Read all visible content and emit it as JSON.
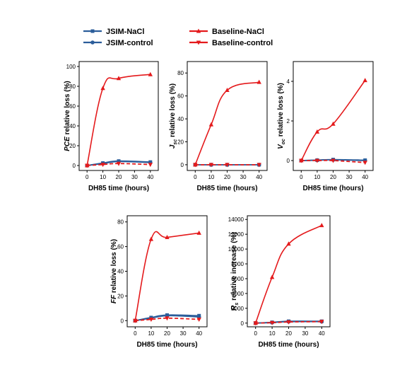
{
  "legend": {
    "items": [
      {
        "label": "JSIM-NaCl",
        "color": "#2b5d9a",
        "marker": "square",
        "dash": false
      },
      {
        "label": "JSIM-control",
        "color": "#2b5d9a",
        "marker": "circle",
        "dash": false
      },
      {
        "label": "Baseline-NaCl",
        "color": "#e41a1c",
        "marker": "triangle-up",
        "dash": false
      },
      {
        "label": "Baseline-control",
        "color": "#e41a1c",
        "marker": "triangle-down",
        "dash": false
      }
    ],
    "placement": "top-center"
  },
  "colors": {
    "jsim": "#2b5d9a",
    "baseline": "#e41a1c"
  },
  "chart_data": [
    {
      "type": "line",
      "title": "",
      "xlabel": "DH85 time (hours)",
      "ylabel": {
        "main": "PCE",
        "sub": "",
        "rest": " relative loss (%)",
        "main_italic": true
      },
      "x": [
        0,
        10,
        20,
        40
      ],
      "xlim": [
        -5,
        45
      ],
      "ylim": [
        -5,
        105
      ],
      "xticks": [
        "0",
        "10",
        "20",
        "30",
        "40"
      ],
      "yticks": [
        "0",
        "20",
        "40",
        "60",
        "80",
        "100"
      ],
      "series": [
        {
          "name": "JSIM-NaCl",
          "values": [
            0,
            2.5,
            4.5,
            3.5
          ]
        },
        {
          "name": "JSIM-control",
          "values": [
            0,
            2,
            4,
            3
          ]
        },
        {
          "name": "Baseline-NaCl",
          "values": [
            0,
            78,
            88,
            92
          ]
        },
        {
          "name": "Baseline-control",
          "values": [
            0,
            1,
            2,
            1
          ]
        }
      ]
    },
    {
      "type": "line",
      "title": "",
      "xlabel": "DH85 time (hours)",
      "ylabel": {
        "main": "J",
        "sub": "sc",
        "rest": " relative loss (%)",
        "main_italic": true
      },
      "x": [
        0,
        10,
        20,
        40
      ],
      "xlim": [
        -5,
        45
      ],
      "ylim": [
        -5,
        90
      ],
      "xticks": [
        "0",
        "10",
        "20",
        "30",
        "40"
      ],
      "yticks": [
        "0",
        "20",
        "40",
        "60",
        "80"
      ],
      "series": [
        {
          "name": "JSIM-NaCl",
          "values": [
            0,
            0,
            0,
            0
          ]
        },
        {
          "name": "JSIM-control",
          "values": [
            0,
            0,
            0,
            0
          ]
        },
        {
          "name": "Baseline-NaCl",
          "values": [
            0,
            35,
            65,
            72
          ]
        },
        {
          "name": "Baseline-control",
          "values": [
            0,
            0,
            0,
            0
          ]
        }
      ]
    },
    {
      "type": "line",
      "title": "",
      "xlabel": "DH85 time (hours)",
      "ylabel": {
        "main": "V",
        "sub": "oc",
        "rest": " relative loss (%)",
        "main_italic": true
      },
      "x": [
        0,
        10,
        20,
        40
      ],
      "xlim": [
        -5,
        45
      ],
      "ylim": [
        -0.5,
        5.0
      ],
      "xticks": [
        "0",
        "10",
        "20",
        "30",
        "40"
      ],
      "yticks": [
        "0",
        "2",
        "4"
      ],
      "series": [
        {
          "name": "JSIM-NaCl",
          "values": [
            0,
            0.02,
            0.05,
            0.02
          ]
        },
        {
          "name": "JSIM-control",
          "values": [
            0,
            0.02,
            0.04,
            0.0
          ]
        },
        {
          "name": "Baseline-NaCl",
          "values": [
            0,
            1.45,
            1.85,
            4.05
          ]
        },
        {
          "name": "Baseline-control",
          "values": [
            0,
            0,
            0,
            -0.1
          ]
        }
      ]
    },
    {
      "type": "line",
      "title": "",
      "xlabel": "DH85 time (hours)",
      "ylabel": {
        "main": "FF",
        "sub": "",
        "rest": " relative loss (%)",
        "main_italic": true
      },
      "x": [
        0,
        10,
        20,
        40
      ],
      "xlim": [
        -5,
        45
      ],
      "ylim": [
        -5,
        85
      ],
      "xticks": [
        "0",
        "10",
        "20",
        "30",
        "40"
      ],
      "yticks": [
        "0",
        "20",
        "40",
        "60",
        "80"
      ],
      "series": [
        {
          "name": "JSIM-NaCl",
          "values": [
            0,
            2.5,
            4.5,
            4
          ]
        },
        {
          "name": "JSIM-control",
          "values": [
            0,
            2,
            4,
            3
          ]
        },
        {
          "name": "Baseline-NaCl",
          "values": [
            0,
            66,
            67.5,
            71
          ]
        },
        {
          "name": "Baseline-control",
          "values": [
            0,
            1,
            2,
            1
          ]
        }
      ]
    },
    {
      "type": "line",
      "title": "",
      "xlabel": "DH85 time (hours)",
      "ylabel": {
        "main": "R",
        "sub": "s",
        "rest": " relative increase (%)",
        "main_italic": true
      },
      "x": [
        0,
        10,
        20,
        40
      ],
      "xlim": [
        -5,
        45
      ],
      "ylim": [
        -500,
        14500
      ],
      "xticks": [
        "0",
        "10",
        "20",
        "30",
        "40"
      ],
      "yticks": [
        "0",
        "2000",
        "4000",
        "6000",
        "8000",
        "10000",
        "12000",
        "14000"
      ],
      "series": [
        {
          "name": "JSIM-NaCl",
          "values": [
            0,
            100,
            250,
            250
          ]
        },
        {
          "name": "JSIM-control",
          "values": [
            0,
            80,
            200,
            200
          ]
        },
        {
          "name": "Baseline-NaCl",
          "values": [
            0,
            6200,
            10700,
            13200
          ]
        },
        {
          "name": "Baseline-control",
          "values": [
            0,
            50,
            150,
            200
          ]
        }
      ]
    }
  ]
}
